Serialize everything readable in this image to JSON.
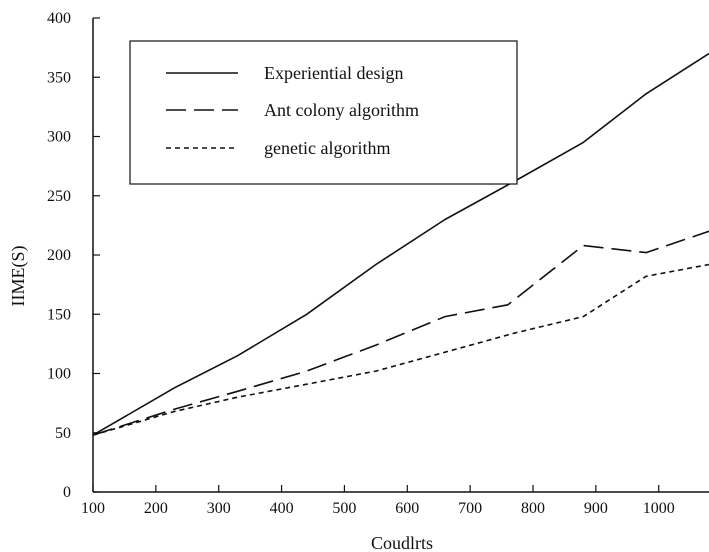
{
  "chart_data": {
    "type": "line",
    "title": "",
    "xlabel": "Coudlrts",
    "ylabel": "IIME(S)",
    "xlim": [
      100,
      1080
    ],
    "ylim": [
      0,
      400
    ],
    "xticks": [
      100,
      200,
      300,
      400,
      500,
      600,
      700,
      800,
      900,
      1000
    ],
    "yticks": [
      0,
      50,
      100,
      150,
      200,
      250,
      300,
      350,
      400
    ],
    "grid": false,
    "legend": "top-left",
    "series": [
      {
        "name": "Experiential design",
        "style": "solid",
        "x": [
          100,
          230,
          330,
          440,
          550,
          660,
          770,
          880,
          980,
          1080
        ],
        "y": [
          48,
          88,
          115,
          150,
          192,
          230,
          262,
          295,
          336,
          370
        ]
      },
      {
        "name": "Ant colony algorithm",
        "style": "dashed",
        "x": [
          100,
          230,
          330,
          440,
          550,
          660,
          760,
          880,
          980,
          1080
        ],
        "y": [
          48,
          70,
          85,
          102,
          124,
          148,
          158,
          208,
          202,
          220
        ]
      },
      {
        "name": "genetic algorithm",
        "style": "dotted",
        "x": [
          100,
          230,
          330,
          440,
          550,
          660,
          770,
          880,
          980,
          1080
        ],
        "y": [
          48,
          68,
          80,
          91,
          102,
          118,
          134,
          148,
          182,
          192
        ]
      }
    ]
  }
}
